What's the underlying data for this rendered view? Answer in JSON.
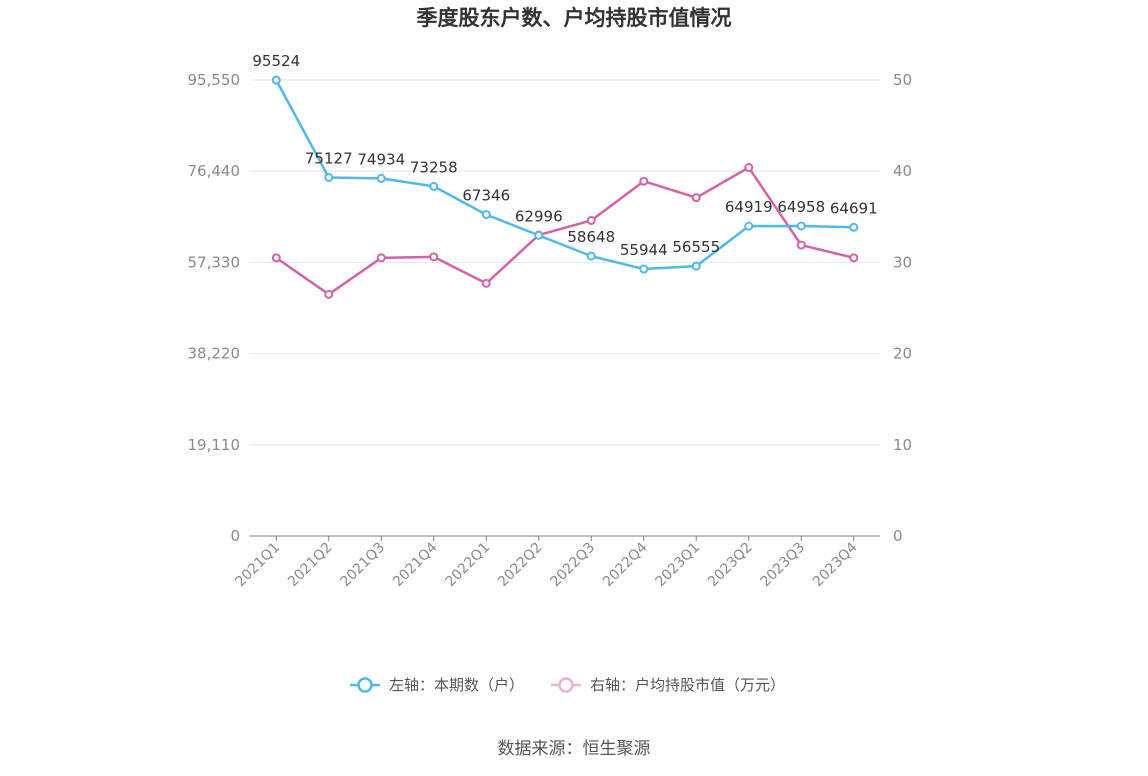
{
  "chart_data": {
    "type": "line",
    "title": "季度股东户数、户均持股市值情况",
    "categories": [
      "2021Q1",
      "2021Q2",
      "2021Q3",
      "2021Q4",
      "2022Q1",
      "2022Q2",
      "2022Q3",
      "2022Q4",
      "2023Q1",
      "2023Q2",
      "2023Q3",
      "2023Q4"
    ],
    "left_axis": {
      "ylim": [
        0,
        95550
      ],
      "ticks": [
        "0",
        "19,110",
        "38,220",
        "57,330",
        "76,440",
        "95,550"
      ],
      "tick_values": [
        0,
        19110,
        38220,
        57330,
        76440,
        95550
      ]
    },
    "right_axis": {
      "ylim": [
        0,
        50
      ],
      "ticks": [
        "0",
        "10",
        "20",
        "30",
        "40",
        "50"
      ],
      "tick_values": [
        0,
        10,
        20,
        30,
        40,
        50
      ]
    },
    "grid": true,
    "legend_position": "bottom",
    "series": [
      {
        "name": "左轴：本期数（户）",
        "axis": "left",
        "color": "#4fb9ec",
        "values": [
          95524,
          75127,
          74934,
          73258,
          67346,
          62996,
          58648,
          55944,
          56555,
          64919,
          64958,
          64691
        ],
        "labels": [
          "95524",
          "75127",
          "74934",
          "73258",
          "67346",
          "62996",
          "58648",
          "55944",
          "56555",
          "64919",
          "64958",
          "64691"
        ]
      },
      {
        "name": "右轴：户均持股市值（万元）",
        "axis": "right",
        "color": "#d462a8",
        "values": [
          30.5,
          26.5,
          30.5,
          30.6,
          27.7,
          33.0,
          34.6,
          38.9,
          37.1,
          40.4,
          31.9,
          30.5
        ]
      }
    ],
    "source": "数据来源：恒生聚源"
  }
}
